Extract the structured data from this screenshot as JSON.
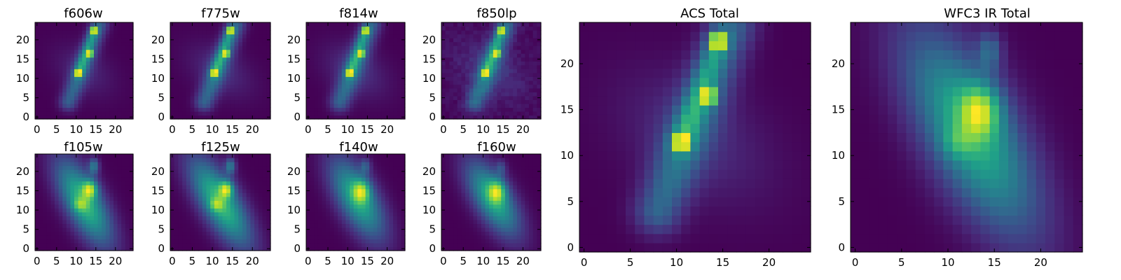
{
  "colormap": "viridis",
  "colormap_stops": [
    "#440154",
    "#482878",
    "#3e4989",
    "#31688e",
    "#26828e",
    "#1f9e89",
    "#35b779",
    "#6ece58",
    "#b5de2b",
    "#fde725"
  ],
  "background_color": "#ffffff",
  "chart_data": [
    {
      "type": "heatmap",
      "title": "f606w",
      "grid": [
        25,
        25
      ],
      "xlim": [
        -0.5,
        24.5
      ],
      "ylim": [
        -0.5,
        24.5
      ],
      "xticks": [
        0,
        5,
        10,
        15,
        20
      ],
      "yticks": [
        0,
        5,
        10,
        15,
        20
      ],
      "xtick_labels": [
        "0",
        "5",
        "10",
        "15",
        "20"
      ],
      "ytick_labels": [
        "0",
        "5",
        "10",
        "15",
        "20"
      ],
      "background_level": 0.08,
      "features": [
        {
          "kind": "clump",
          "x": 10.5,
          "y": 11.5,
          "sx": 0.55,
          "sy": 0.55,
          "amp": 0.95
        },
        {
          "kind": "clump",
          "x": 13.5,
          "y": 16.5,
          "sx": 0.55,
          "sy": 0.6,
          "amp": 0.95
        },
        {
          "kind": "clump",
          "x": 14.5,
          "y": 22.5,
          "sx": 0.55,
          "sy": 0.6,
          "amp": 1.0
        },
        {
          "kind": "ridge",
          "x0": 8,
          "y0": 4,
          "x1": 16,
          "y1": 24,
          "width": 1.6,
          "amp": 0.35
        },
        {
          "kind": "ridge",
          "x0": 10.5,
          "y0": 11.5,
          "x1": 14.5,
          "y1": 22.5,
          "width": 0.9,
          "amp": 0.3
        },
        {
          "kind": "blob",
          "x": 12,
          "y": 12,
          "sx": 4.0,
          "sy": 6.0,
          "angle": 55,
          "amp": 0.12
        }
      ]
    },
    {
      "type": "heatmap",
      "title": "f775w",
      "grid": [
        25,
        25
      ],
      "xlim": [
        -0.5,
        24.5
      ],
      "ylim": [
        -0.5,
        24.5
      ],
      "xticks": [
        0,
        5,
        10,
        15,
        20
      ],
      "yticks": [
        0,
        5,
        10,
        15,
        20
      ],
      "xtick_labels": [
        "0",
        "5",
        "10",
        "15",
        "20"
      ],
      "ytick_labels": [
        "0",
        "5",
        "10",
        "15",
        "20"
      ],
      "background_level": 0.08,
      "features": [
        {
          "kind": "clump",
          "x": 10.5,
          "y": 11.5,
          "sx": 0.55,
          "sy": 0.55,
          "amp": 0.9
        },
        {
          "kind": "clump",
          "x": 13.5,
          "y": 16.5,
          "sx": 0.55,
          "sy": 0.6,
          "amp": 0.95
        },
        {
          "kind": "clump",
          "x": 14.5,
          "y": 22.5,
          "sx": 0.55,
          "sy": 0.6,
          "amp": 1.0
        },
        {
          "kind": "ridge",
          "x0": 8,
          "y0": 4,
          "x1": 16,
          "y1": 24,
          "width": 1.7,
          "amp": 0.38
        },
        {
          "kind": "ridge",
          "x0": 10.5,
          "y0": 11.5,
          "x1": 14.5,
          "y1": 22.5,
          "width": 0.9,
          "amp": 0.32
        },
        {
          "kind": "blob",
          "x": 12,
          "y": 12,
          "sx": 4.0,
          "sy": 6.5,
          "angle": 55,
          "amp": 0.15
        }
      ]
    },
    {
      "type": "heatmap",
      "title": "f814w",
      "grid": [
        25,
        25
      ],
      "xlim": [
        -0.5,
        24.5
      ],
      "ylim": [
        -0.5,
        24.5
      ],
      "xticks": [
        0,
        5,
        10,
        15,
        20
      ],
      "yticks": [
        0,
        5,
        10,
        15,
        20
      ],
      "xtick_labels": [
        "0",
        "5",
        "10",
        "15",
        "20"
      ],
      "ytick_labels": [
        "0",
        "5",
        "10",
        "15",
        "20"
      ],
      "background_level": 0.08,
      "features": [
        {
          "kind": "clump",
          "x": 10.5,
          "y": 11.5,
          "sx": 0.55,
          "sy": 0.55,
          "amp": 0.9
        },
        {
          "kind": "clump",
          "x": 13.5,
          "y": 16.5,
          "sx": 0.55,
          "sy": 0.6,
          "amp": 0.95
        },
        {
          "kind": "clump",
          "x": 14.5,
          "y": 22.5,
          "sx": 0.55,
          "sy": 0.6,
          "amp": 1.0
        },
        {
          "kind": "ridge",
          "x0": 8,
          "y0": 4,
          "x1": 16,
          "y1": 24,
          "width": 1.8,
          "amp": 0.4
        },
        {
          "kind": "ridge",
          "x0": 10.5,
          "y0": 11.5,
          "x1": 14.5,
          "y1": 22.5,
          "width": 0.9,
          "amp": 0.32
        },
        {
          "kind": "blob",
          "x": 12,
          "y": 12,
          "sx": 4.2,
          "sy": 6.5,
          "angle": 55,
          "amp": 0.17
        }
      ]
    },
    {
      "type": "heatmap",
      "title": "f850lp",
      "grid": [
        25,
        25
      ],
      "xlim": [
        -0.5,
        24.5
      ],
      "ylim": [
        -0.5,
        24.5
      ],
      "xticks": [
        0,
        5,
        10,
        15,
        20
      ],
      "yticks": [
        0,
        5,
        10,
        15,
        20
      ],
      "xtick_labels": [
        "0",
        "5",
        "10",
        "15",
        "20"
      ],
      "ytick_labels": [
        "0",
        "5",
        "10",
        "15",
        "20"
      ],
      "background_level": 0.1,
      "noise": 0.07,
      "features": [
        {
          "kind": "clump",
          "x": 10.5,
          "y": 11.5,
          "sx": 0.55,
          "sy": 0.55,
          "amp": 0.85
        },
        {
          "kind": "clump",
          "x": 13.5,
          "y": 16.5,
          "sx": 0.55,
          "sy": 0.6,
          "amp": 0.9
        },
        {
          "kind": "clump",
          "x": 14.5,
          "y": 22.5,
          "sx": 0.55,
          "sy": 0.6,
          "amp": 0.95
        },
        {
          "kind": "ridge",
          "x0": 8,
          "y0": 4,
          "x1": 16,
          "y1": 24,
          "width": 1.8,
          "amp": 0.4
        },
        {
          "kind": "ridge",
          "x0": 10.5,
          "y0": 11.5,
          "x1": 14.5,
          "y1": 22.5,
          "width": 0.9,
          "amp": 0.32
        },
        {
          "kind": "blob",
          "x": 12,
          "y": 12,
          "sx": 4.2,
          "sy": 6.5,
          "angle": 55,
          "amp": 0.17
        }
      ]
    },
    {
      "type": "heatmap",
      "title": "f105w",
      "grid": [
        25,
        25
      ],
      "xlim": [
        -0.5,
        24.5
      ],
      "ylim": [
        -0.5,
        24.5
      ],
      "xticks": [
        0,
        5,
        10,
        15,
        20
      ],
      "yticks": [
        0,
        5,
        10,
        15,
        20
      ],
      "xtick_labels": [
        "0",
        "5",
        "10",
        "15",
        "20"
      ],
      "ytick_labels": [
        "0",
        "5",
        "10",
        "15",
        "20"
      ],
      "background_level": 0.06,
      "features": [
        {
          "kind": "blob",
          "x": 12,
          "y": 12,
          "sx": 3.3,
          "sy": 8.5,
          "angle": 28,
          "amp": 0.55
        },
        {
          "kind": "clump",
          "x": 13.5,
          "y": 15.5,
          "sx": 1.3,
          "sy": 1.6,
          "amp": 0.45
        },
        {
          "kind": "clump",
          "x": 14.5,
          "y": 21.5,
          "sx": 0.9,
          "sy": 1.5,
          "amp": 0.3
        },
        {
          "kind": "clump",
          "x": 11,
          "y": 11.5,
          "sx": 1.3,
          "sy": 1.2,
          "amp": 0.2
        }
      ]
    },
    {
      "type": "heatmap",
      "title": "f125w",
      "grid": [
        25,
        25
      ],
      "xlim": [
        -0.5,
        24.5
      ],
      "ylim": [
        -0.5,
        24.5
      ],
      "xticks": [
        0,
        5,
        10,
        15,
        20
      ],
      "yticks": [
        0,
        5,
        10,
        15,
        20
      ],
      "xtick_labels": [
        "0",
        "5",
        "10",
        "15",
        "20"
      ],
      "ytick_labels": [
        "0",
        "5",
        "10",
        "15",
        "20"
      ],
      "background_level": 0.06,
      "features": [
        {
          "kind": "blob",
          "x": 12,
          "y": 12,
          "sx": 3.3,
          "sy": 9.0,
          "angle": 30,
          "amp": 0.55
        },
        {
          "kind": "clump",
          "x": 13.5,
          "y": 15.5,
          "sx": 1.2,
          "sy": 1.5,
          "amp": 0.45
        },
        {
          "kind": "clump",
          "x": 14.5,
          "y": 21.5,
          "sx": 0.9,
          "sy": 1.5,
          "amp": 0.3
        },
        {
          "kind": "clump",
          "x": 11,
          "y": 11.5,
          "sx": 1.2,
          "sy": 1.2,
          "amp": 0.22
        }
      ]
    },
    {
      "type": "heatmap",
      "title": "f140w",
      "grid": [
        25,
        25
      ],
      "xlim": [
        -0.5,
        24.5
      ],
      "ylim": [
        -0.5,
        24.5
      ],
      "xticks": [
        0,
        5,
        10,
        15,
        20
      ],
      "yticks": [
        0,
        5,
        10,
        15,
        20
      ],
      "xtick_labels": [
        "0",
        "5",
        "10",
        "15",
        "20"
      ],
      "ytick_labels": [
        "0",
        "5",
        "10",
        "15",
        "20"
      ],
      "background_level": 0.06,
      "features": [
        {
          "kind": "blob",
          "x": 12.5,
          "y": 13,
          "sx": 3.4,
          "sy": 8.0,
          "angle": 28,
          "amp": 0.6
        },
        {
          "kind": "clump",
          "x": 13.5,
          "y": 15,
          "sx": 1.5,
          "sy": 2.0,
          "amp": 0.45
        },
        {
          "kind": "clump",
          "x": 14.5,
          "y": 21.5,
          "sx": 0.9,
          "sy": 1.4,
          "amp": 0.22
        }
      ]
    },
    {
      "type": "heatmap",
      "title": "f160w",
      "grid": [
        25,
        25
      ],
      "xlim": [
        -0.5,
        24.5
      ],
      "ylim": [
        -0.5,
        24.5
      ],
      "xticks": [
        0,
        5,
        10,
        15,
        20
      ],
      "yticks": [
        0,
        5,
        10,
        15,
        20
      ],
      "xtick_labels": [
        "0",
        "5",
        "10",
        "15",
        "20"
      ],
      "ytick_labels": [
        "0",
        "5",
        "10",
        "15",
        "20"
      ],
      "background_level": 0.07,
      "features": [
        {
          "kind": "blob",
          "x": 12.5,
          "y": 13,
          "sx": 3.2,
          "sy": 7.5,
          "angle": 30,
          "amp": 0.6
        },
        {
          "kind": "clump",
          "x": 13.5,
          "y": 15,
          "sx": 1.5,
          "sy": 2.0,
          "amp": 0.45
        },
        {
          "kind": "clump",
          "x": 14.5,
          "y": 21,
          "sx": 0.9,
          "sy": 1.4,
          "amp": 0.18
        }
      ]
    },
    {
      "type": "heatmap",
      "title": "ACS Total",
      "grid": [
        25,
        25
      ],
      "xlim": [
        -0.5,
        24.5
      ],
      "ylim": [
        -0.5,
        24.5
      ],
      "xticks": [
        0,
        5,
        10,
        15,
        20
      ],
      "yticks": [
        0,
        5,
        10,
        15,
        20
      ],
      "xtick_labels": [
        "0",
        "5",
        "10",
        "15",
        "20"
      ],
      "ytick_labels": [
        "0",
        "5",
        "10",
        "15",
        "20"
      ],
      "background_level": 0.05,
      "features": [
        {
          "kind": "clump",
          "x": 10.5,
          "y": 11.5,
          "sx": 0.55,
          "sy": 0.55,
          "amp": 0.9
        },
        {
          "kind": "clump",
          "x": 13.5,
          "y": 16.5,
          "sx": 0.55,
          "sy": 0.6,
          "amp": 0.95
        },
        {
          "kind": "clump",
          "x": 14.5,
          "y": 22.5,
          "sx": 0.55,
          "sy": 0.6,
          "amp": 1.0
        },
        {
          "kind": "ridge",
          "x0": 8,
          "y0": 4,
          "x1": 16,
          "y1": 24,
          "width": 1.8,
          "amp": 0.4
        },
        {
          "kind": "ridge",
          "x0": 10.5,
          "y0": 11.5,
          "x1": 14.5,
          "y1": 22.5,
          "width": 0.9,
          "amp": 0.32
        },
        {
          "kind": "blob",
          "x": 12,
          "y": 12,
          "sx": 4.2,
          "sy": 6.5,
          "angle": 55,
          "amp": 0.16
        }
      ]
    },
    {
      "type": "heatmap",
      "title": "WFC3 IR Total",
      "grid": [
        25,
        25
      ],
      "xlim": [
        -0.5,
        24.5
      ],
      "ylim": [
        -0.5,
        24.5
      ],
      "xticks": [
        0,
        5,
        10,
        15,
        20
      ],
      "yticks": [
        0,
        5,
        10,
        15,
        20
      ],
      "xtick_labels": [
        "0",
        "5",
        "10",
        "15",
        "20"
      ],
      "ytick_labels": [
        "0",
        "5",
        "10",
        "15",
        "20"
      ],
      "background_level": 0.06,
      "features": [
        {
          "kind": "blob",
          "x": 12.5,
          "y": 12.5,
          "sx": 3.4,
          "sy": 8.5,
          "angle": 28,
          "amp": 0.58
        },
        {
          "kind": "clump",
          "x": 13.5,
          "y": 15,
          "sx": 1.5,
          "sy": 2.0,
          "amp": 0.45
        },
        {
          "kind": "clump",
          "x": 14.5,
          "y": 21.5,
          "sx": 0.9,
          "sy": 1.5,
          "amp": 0.25
        },
        {
          "kind": "clump",
          "x": 11,
          "y": 11.5,
          "sx": 1.2,
          "sy": 1.2,
          "amp": 0.15
        }
      ]
    }
  ]
}
